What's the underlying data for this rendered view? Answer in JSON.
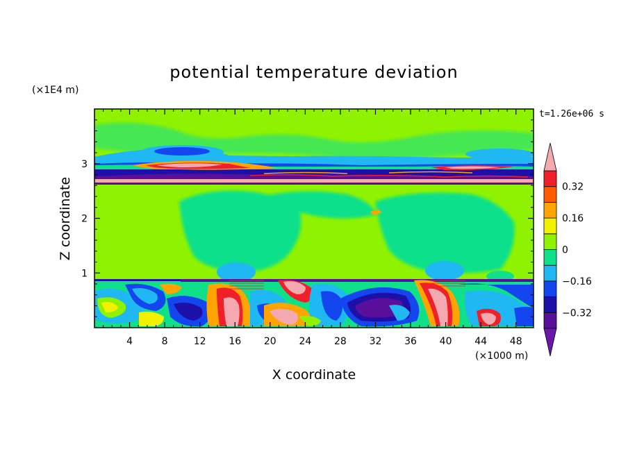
{
  "chart_data": {
    "type": "heatmap",
    "title": "potential temperature deviation",
    "xlabel": "X coordinate",
    "ylabel": "Z coordinate",
    "x_unit": "(×1000 m)",
    "y_unit": "(×1E4 m)",
    "time_label": "t=1.26e+06 s",
    "xlim": [
      0,
      50
    ],
    "ylim": [
      0,
      4
    ],
    "x_ticks": [
      4,
      8,
      12,
      16,
      20,
      24,
      28,
      32,
      36,
      40,
      44,
      48
    ],
    "y_ticks": [
      1,
      2,
      3
    ],
    "x_tick_labels": [
      "4",
      "8",
      "12",
      "16",
      "20",
      "24",
      "28",
      "32",
      "36",
      "40",
      "44",
      "48"
    ],
    "y_tick_labels": [
      "1",
      "2",
      "3"
    ],
    "colorbar": {
      "levels": [
        -0.4,
        -0.32,
        -0.24,
        -0.16,
        -0.08,
        0,
        0.08,
        0.16,
        0.24,
        0.32,
        0.4
      ],
      "colors": [
        "#5a0f9a",
        "#1c10a8",
        "#1446f0",
        "#1fb8f2",
        "#10e08a",
        "#8ff200",
        "#f2f200",
        "#ffa400",
        "#ff5a00",
        "#f0202a"
      ],
      "under_color": "#6a18a8",
      "over_color": "#f4a8b0",
      "tick_labels": [
        "0.32",
        "0.16",
        "0",
        "−0.16",
        "−0.32"
      ]
    }
  }
}
